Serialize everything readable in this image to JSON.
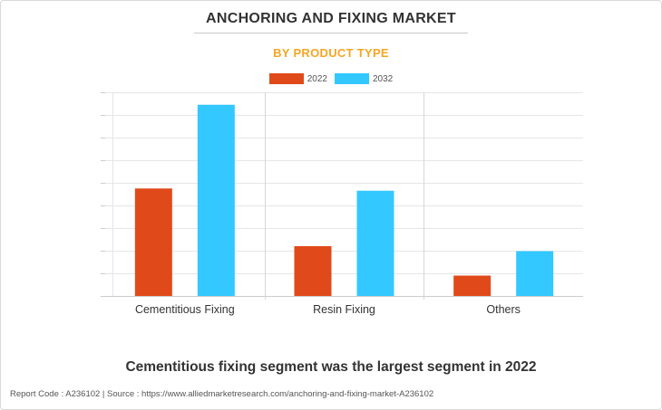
{
  "header": {
    "title": "ANCHORING AND FIXING MARKET",
    "subtitle": "BY PRODUCT TYPE"
  },
  "legend": {
    "items": [
      {
        "label": "2022",
        "color": "#e04a1a"
      },
      {
        "label": "2032",
        "color": "#33c8ff"
      }
    ]
  },
  "chart_data": {
    "type": "bar",
    "title": "ANCHORING AND FIXING MARKET",
    "subtitle": "BY PRODUCT TYPE",
    "categories": [
      "Cementitious Fixing",
      "Resin Fixing",
      "Others"
    ],
    "series": [
      {
        "name": "2022",
        "color": "#e04a1a",
        "values": [
          4.75,
          2.2,
          0.9
        ]
      },
      {
        "name": "2032",
        "color": "#33c8ff",
        "values": [
          8.45,
          4.65,
          1.98
        ]
      }
    ],
    "ylim": [
      0,
      9
    ],
    "grid": true,
    "legend_position": "top-center",
    "y_tick_labels_visible": false
  },
  "caption": "Cementitious fixing segment was the largest segment in 2022",
  "footer": "Report Code : A236102  |  Source : https://www.alliedmarketresearch.com/anchoring-and-fixing-market-A236102"
}
